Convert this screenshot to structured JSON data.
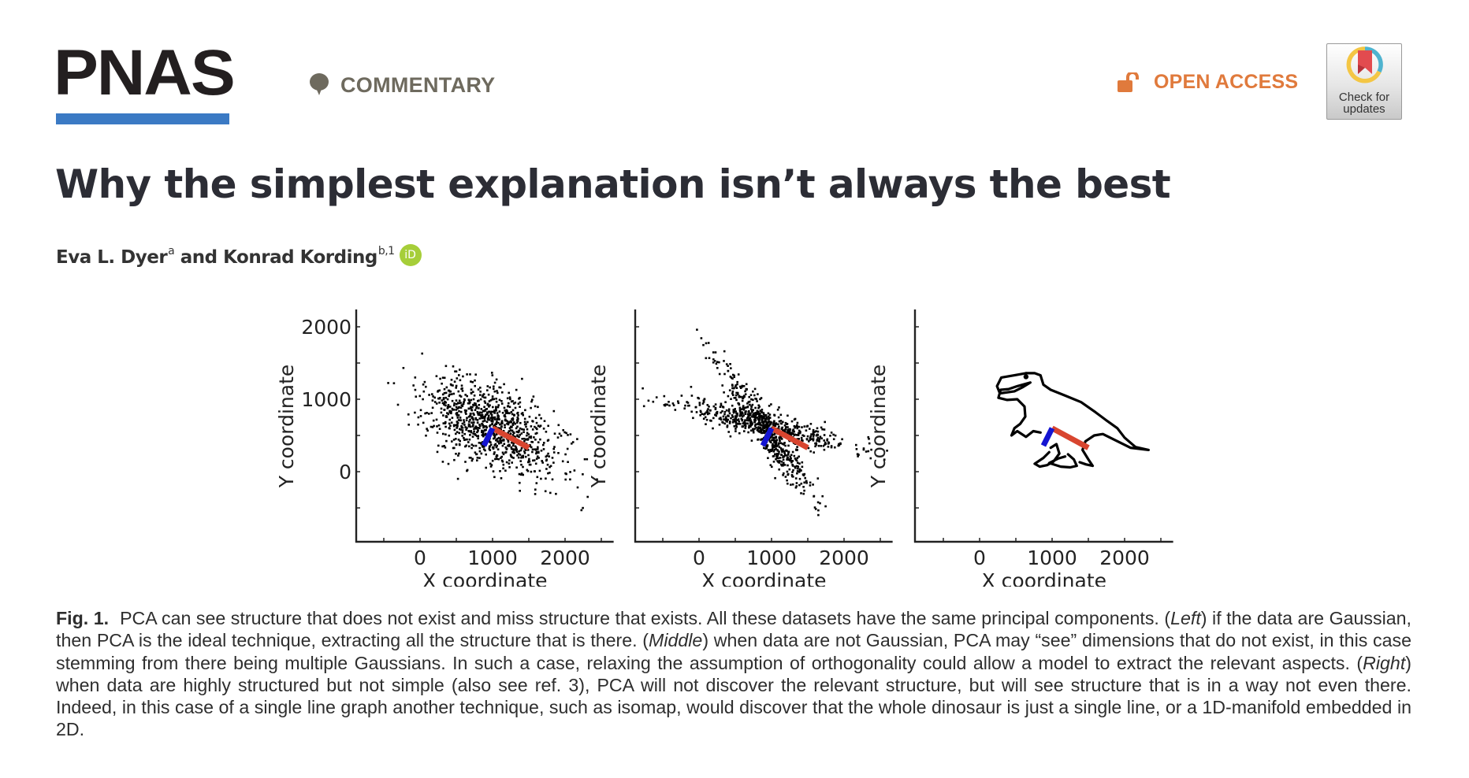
{
  "header": {
    "logo_text": "PNAS",
    "section_label": "COMMENTARY",
    "section_icon": "speech-bubble-icon",
    "open_access_label": "OPEN ACCESS",
    "open_access_icon": "unlocked-padlock-icon",
    "badge_line1": "Check for",
    "badge_line2": "updates",
    "colors": {
      "logo_bar": "#3b7ac4",
      "section": "#6e6a5e",
      "open_access": "#e07a3c"
    }
  },
  "article": {
    "title": "Why the simplest explanation isn’t always the best",
    "authors": [
      {
        "name": "Eva L. Dyer",
        "affil": "a"
      },
      {
        "name": "Konrad Kording",
        "affil": "b,1"
      }
    ],
    "author_joiner": " and ",
    "orcid_label": "iD"
  },
  "caption": {
    "label": "Fig. 1.",
    "parts": [
      {
        "text": "PCA can see structure that does not exist and miss structure that exists. All these datasets have the same principal components. (",
        "italic": false
      },
      {
        "text": "Left",
        "italic": true
      },
      {
        "text": ") if the data are Gaussian, then PCA is the ideal technique, extracting all the structure that is there. (",
        "italic": false
      },
      {
        "text": "Middle",
        "italic": true
      },
      {
        "text": ") when data are not Gaussian, PCA may “see” dimensions that do not exist, in this case stemming from there being multiple Gaussians. In such a case, relaxing the assumption of orthogonality could allow a model to extract the relevant aspects. (",
        "italic": false
      },
      {
        "text": "Right",
        "italic": true
      },
      {
        "text": ") when data are highly structured but not simple (also see ref. 3), PCA will not discover the relevant structure, but will see structure that is in a way not even there. Indeed, in this case of a single line graph another technique, such as isomap, would discover that the whole dinosaur is just a single line, or a 1D-manifold embedded in 2D.",
        "italic": false
      }
    ]
  },
  "chart_data": [
    {
      "type": "scatter",
      "panel": "left",
      "xlabel": "X coordinate",
      "ylabel": "Y coordinate",
      "xlim": [
        -870,
        2670
      ],
      "ylim": [
        -1000,
        2230
      ],
      "xticks": [
        0,
        1000,
        2000
      ],
      "xticks_minor": [
        -500,
        500,
        1500,
        2500
      ],
      "yticks": [
        0,
        1000,
        2000
      ],
      "yticks_minor": [
        -500,
        500,
        1500
      ],
      "show_ytick_labels": true,
      "grid": false,
      "point_color": "#000000",
      "distribution": {
        "kind": "gaussian",
        "n": 1000,
        "mean": [
          1000,
          600
        ],
        "sd_major": 520,
        "sd_minor": 260,
        "angle_deg": -29,
        "seed": 7
      },
      "components": [
        {
          "name": "PC1",
          "color": "#d8452f",
          "from": [
            1000,
            600
          ],
          "to": [
            1500,
            330
          ]
        },
        {
          "name": "PC2",
          "color": "#1414d2",
          "from": [
            1000,
            600
          ],
          "to": [
            880,
            360
          ]
        }
      ]
    },
    {
      "type": "scatter",
      "panel": "middle",
      "xlabel": "X coordinate",
      "ylabel": "Y coordinate",
      "xlim": [
        -870,
        2670
      ],
      "ylim": [
        -1000,
        2230
      ],
      "xticks": [
        0,
        1000,
        2000
      ],
      "xticks_minor": [
        -500,
        500,
        1500,
        2500
      ],
      "yticks": [
        0,
        1000,
        2000
      ],
      "yticks_minor": [
        -500,
        500,
        1500
      ],
      "show_ytick_labels": false,
      "grid": false,
      "point_color": "#000000",
      "distribution": {
        "kind": "mixture",
        "components": [
          {
            "n": 520,
            "mean": [
              900,
              650
            ],
            "sd_major": 620,
            "sd_minor": 90,
            "angle_deg": -14,
            "seed": 11
          },
          {
            "n": 480,
            "mean": [
              900,
              600
            ],
            "sd_major": 560,
            "sd_minor": 95,
            "angle_deg": -56,
            "seed": 23
          }
        ]
      },
      "components": [
        {
          "name": "PC1",
          "color": "#d8452f",
          "from": [
            1000,
            600
          ],
          "to": [
            1500,
            330
          ]
        },
        {
          "name": "PC2",
          "color": "#1414d2",
          "from": [
            1000,
            600
          ],
          "to": [
            880,
            360
          ]
        }
      ]
    },
    {
      "type": "line",
      "panel": "right",
      "xlabel": "X coordinate",
      "ylabel": "Y coordinate",
      "xlim": [
        -870,
        2670
      ],
      "ylim": [
        -1000,
        2230
      ],
      "xticks": [
        0,
        1000,
        2000
      ],
      "xticks_minor": [
        -500,
        500,
        1500,
        2500
      ],
      "yticks": [
        0,
        1000,
        2000
      ],
      "yticks_minor": [
        -500,
        500,
        1500
      ],
      "show_ytick_labels": false,
      "grid": false,
      "line_color": "#000000",
      "dinosaur_outline": [
        [
          [
            640,
            1360
          ],
          [
            480,
            1330
          ],
          [
            300,
            1300
          ],
          [
            240,
            1180
          ],
          [
            280,
            1080
          ],
          [
            480,
            1110
          ],
          [
            600,
            1170
          ],
          [
            700,
            1230
          ],
          [
            520,
            1180
          ],
          [
            400,
            1140
          ],
          [
            290,
            1130
          ],
          [
            260,
            1020
          ],
          [
            380,
            990
          ],
          [
            520,
            1000
          ],
          [
            620,
            900
          ],
          [
            630,
            760
          ],
          [
            560,
            660
          ],
          [
            480,
            600
          ],
          [
            440,
            500
          ],
          [
            520,
            560
          ],
          [
            640,
            480
          ],
          [
            740,
            560
          ],
          [
            840,
            540
          ]
        ],
        [
          [
            640,
            1360
          ],
          [
            760,
            1360
          ],
          [
            840,
            1330
          ],
          [
            880,
            1200
          ],
          [
            980,
            1130
          ],
          [
            1180,
            1050
          ],
          [
            1400,
            960
          ],
          [
            1600,
            820
          ],
          [
            1760,
            700
          ],
          [
            1900,
            600
          ],
          [
            2000,
            470
          ],
          [
            2150,
            340
          ],
          [
            2330,
            300
          ],
          [
            2080,
            330
          ],
          [
            1880,
            430
          ],
          [
            1700,
            520
          ],
          [
            1580,
            500
          ],
          [
            1460,
            420
          ],
          [
            1420,
            300
          ],
          [
            1500,
            170
          ],
          [
            1560,
            80
          ],
          [
            1470,
            100
          ],
          [
            1380,
            130
          ]
        ],
        [
          [
            1220,
            240
          ],
          [
            1300,
            170
          ],
          [
            1340,
            80
          ],
          [
            1250,
            60
          ],
          [
            1120,
            70
          ],
          [
            960,
            120
          ],
          [
            1080,
            180
          ],
          [
            1180,
            210
          ]
        ],
        [
          [
            980,
            330
          ],
          [
            1060,
            380
          ],
          [
            1100,
            250
          ],
          [
            1020,
            140
          ],
          [
            930,
            90
          ],
          [
            830,
            70
          ],
          [
            760,
            110
          ],
          [
            880,
            190
          ],
          [
            960,
            270
          ]
        ]
      ],
      "components": [
        {
          "name": "PC1",
          "color": "#d8452f",
          "from": [
            1000,
            600
          ],
          "to": [
            1500,
            330
          ]
        },
        {
          "name": "PC2",
          "color": "#1414d2",
          "from": [
            1000,
            600
          ],
          "to": [
            880,
            360
          ]
        }
      ]
    }
  ]
}
